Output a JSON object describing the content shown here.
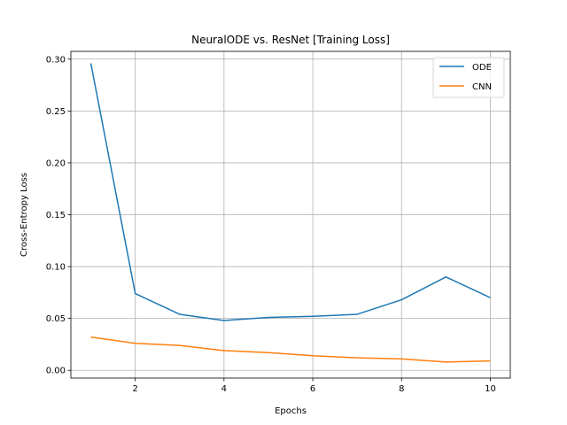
{
  "chart_data": {
    "type": "line",
    "title": "NeuralODE vs. ResNet [Training Loss]",
    "xlabel": "Epochs",
    "ylabel": "Cross-Entropy Loss",
    "x": [
      1,
      2,
      3,
      4,
      5,
      6,
      7,
      8,
      9,
      10
    ],
    "xlim": [
      0.55,
      10.45
    ],
    "ylim": [
      -0.0075,
      0.3075
    ],
    "xticks": [
      2,
      4,
      6,
      8,
      10
    ],
    "xtick_labels": [
      "2",
      "4",
      "6",
      "8",
      "10"
    ],
    "yticks": [
      0.0,
      0.05,
      0.1,
      0.15,
      0.2,
      0.25,
      0.3
    ],
    "ytick_labels": [
      "0.00",
      "0.05",
      "0.10",
      "0.15",
      "0.20",
      "0.25",
      "0.30"
    ],
    "grid": true,
    "legend_position": "top-right",
    "series": [
      {
        "name": "ODE",
        "color": "#1f77b4",
        "values": [
          0.296,
          0.074,
          0.054,
          0.048,
          0.051,
          0.052,
          0.054,
          0.068,
          0.09,
          0.07
        ]
      },
      {
        "name": "CNN",
        "color": "#ff7f0e",
        "values": [
          0.032,
          0.026,
          0.024,
          0.019,
          0.017,
          0.014,
          0.012,
          0.011,
          0.008,
          0.009
        ]
      }
    ]
  }
}
